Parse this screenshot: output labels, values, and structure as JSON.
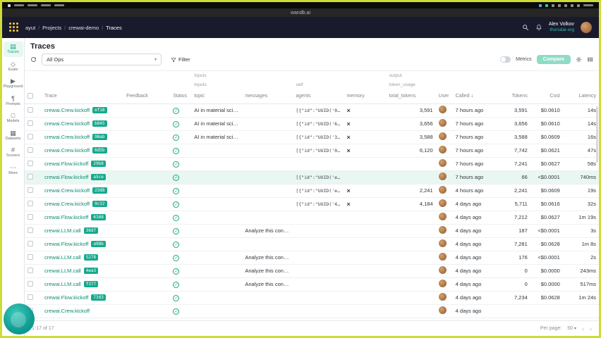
{
  "chrome": {
    "browser_title": "wandb.ai"
  },
  "header": {
    "breadcrumb": [
      "ayut",
      "Projects",
      "crewai-demo",
      "Traces"
    ],
    "user": {
      "name": "Alex Volkov",
      "org": "thursdai-org"
    }
  },
  "sidebar": {
    "items": [
      {
        "label": "Traces",
        "icon": "traces-icon",
        "active": true
      },
      {
        "label": "Evals",
        "icon": "evals-icon",
        "active": false
      },
      {
        "label": "Playground",
        "icon": "playground-icon",
        "active": false
      },
      {
        "label": "Prompts",
        "icon": "prompts-icon",
        "active": false
      },
      {
        "label": "Models",
        "icon": "models-icon",
        "active": false
      },
      {
        "label": "Datasets",
        "icon": "datasets-icon",
        "active": false
      },
      {
        "label": "Scorers",
        "icon": "scorers-icon",
        "active": false
      },
      {
        "label": "More",
        "icon": "more-icon",
        "active": false
      }
    ]
  },
  "page": {
    "title": "Traces"
  },
  "toolbar": {
    "all_ops": "All Ops",
    "filter": "Filter",
    "metrics": "Metrics",
    "compare": "Compare"
  },
  "table": {
    "group_row1": {
      "inputs": "inputs",
      "output": "output"
    },
    "group_row2": {
      "inputs": "inputs",
      "self": "self",
      "token_usage": "token_usage"
    },
    "columns": [
      "Trace",
      "Feedback",
      "Status",
      "topic",
      "messages",
      "agents",
      "memory",
      "total_tokens",
      "User",
      "Called",
      "Tokens",
      "Cost",
      "Latency"
    ],
    "rows": [
      {
        "name": "crewai.Crew.kickoff",
        "badge": "ef18",
        "topic": "AI in material science",
        "messages": "",
        "agents": "[{\"id\":\"UUID('02f7d...",
        "memory": true,
        "total_tokens": "3,591",
        "called": "7 hours ago",
        "tokens": "3,591",
        "cost": "$0.0610",
        "latency": "14s",
        "highlighted": false
      },
      {
        "name": "crewai.Crew.kickoff",
        "badge": "b845",
        "topic": "AI in material science",
        "messages": "",
        "agents": "[{\"id\":\"UUID('6229...",
        "memory": true,
        "total_tokens": "3,656",
        "called": "7 hours ago",
        "tokens": "3,656",
        "cost": "$0.0610",
        "latency": "14s",
        "highlighted": false
      },
      {
        "name": "crewai.Crew.kickoff",
        "badge": "98ab",
        "topic": "AI in material science",
        "messages": "",
        "agents": "[{\"id\":\"UUID('37bf6...",
        "memory": true,
        "total_tokens": "3,588",
        "called": "7 hours ago",
        "tokens": "3,588",
        "cost": "$0.0609",
        "latency": "16s",
        "highlighted": false
      },
      {
        "name": "crewai.Crew.kickoff",
        "badge": "6d5b",
        "topic": "",
        "messages": "",
        "agents": "[{\"id\":\"UUID('043b...",
        "memory": true,
        "total_tokens": "6,120",
        "called": "7 hours ago",
        "tokens": "7,742",
        "cost": "$0.0621",
        "latency": "47s",
        "highlighted": false
      },
      {
        "name": "crewai.Flow.kickoff",
        "badge": "29b8",
        "topic": "",
        "messages": "",
        "agents": "",
        "memory": false,
        "total_tokens": "",
        "called": "7 hours ago",
        "tokens": "7,241",
        "cost": "$0.0627",
        "latency": "58s",
        "highlighted": false
      },
      {
        "name": "crewai.Flow.kickoff",
        "badge": "a5ce",
        "topic": "",
        "messages": "",
        "agents": "[{\"id\":\"UUID('e8f56...",
        "memory": false,
        "total_tokens": "",
        "called": "7 hours ago",
        "tokens": "66",
        "cost": "<$0.0001",
        "latency": "740ms",
        "highlighted": true
      },
      {
        "name": "crewai.Crew.kickoff",
        "badge": "23d8",
        "topic": "",
        "messages": "",
        "agents": "[{\"id\":\"UUID('e8f56...",
        "memory": true,
        "total_tokens": "2,241",
        "called": "4 hours ago",
        "tokens": "2,241",
        "cost": "$0.0609",
        "latency": "19s",
        "highlighted": false
      },
      {
        "name": "crewai.Crew.kickoff",
        "badge": "9c32",
        "topic": "",
        "messages": "",
        "agents": "[{\"id\":\"UUID('4505...",
        "memory": true,
        "total_tokens": "4,184",
        "called": "4 days ago",
        "tokens": "5,711",
        "cost": "$0.0616",
        "latency": "32s",
        "highlighted": false
      },
      {
        "name": "crewai.Flow.kickoff",
        "badge": "6168",
        "topic": "",
        "messages": "",
        "agents": "",
        "memory": false,
        "total_tokens": "",
        "called": "4 days ago",
        "tokens": "7,212",
        "cost": "$0.0627",
        "latency": "1m 19s",
        "highlighted": false
      },
      {
        "name": "crewai.LLM.call",
        "badge": "36d7",
        "topic": "",
        "messages": "Analyze this conten...",
        "agents": "",
        "memory": false,
        "total_tokens": "",
        "called": "4 days ago",
        "tokens": "187",
        "cost": "<$0.0001",
        "latency": "3s",
        "highlighted": false
      },
      {
        "name": "crewai.Flow.kickoff",
        "badge": "a98b",
        "topic": "",
        "messages": "",
        "agents": "",
        "memory": false,
        "total_tokens": "",
        "called": "4 days ago",
        "tokens": "7,281",
        "cost": "$0.0628",
        "latency": "1m 8s",
        "highlighted": false
      },
      {
        "name": "crewai.LLM.call",
        "badge": "5278",
        "topic": "",
        "messages": "Analyze this conten...",
        "agents": "",
        "memory": false,
        "total_tokens": "",
        "called": "4 days ago",
        "tokens": "176",
        "cost": "<$0.0001",
        "latency": "2s",
        "highlighted": false
      },
      {
        "name": "crewai.LLM.call",
        "badge": "4ea3",
        "topic": "",
        "messages": "Analyze this conten...",
        "agents": "",
        "memory": false,
        "total_tokens": "",
        "called": "4 days ago",
        "tokens": "0",
        "cost": "$0.0000",
        "latency": "243ms",
        "highlighted": false
      },
      {
        "name": "crewai.LLM.call",
        "badge": "f377",
        "topic": "",
        "messages": "Analyze this conten...",
        "agents": "",
        "memory": false,
        "total_tokens": "",
        "called": "4 days ago",
        "tokens": "0",
        "cost": "$0.0000",
        "latency": "517ms",
        "highlighted": false
      },
      {
        "name": "crewai.Flow.kickoff",
        "badge": "73d3",
        "topic": "",
        "messages": "",
        "agents": "",
        "memory": false,
        "total_tokens": "",
        "called": "4 days ago",
        "tokens": "7,234",
        "cost": "$0.0628",
        "latency": "1m 24s",
        "highlighted": false
      },
      {
        "name": "crewai.Crew.kickoff",
        "badge": "",
        "topic": "",
        "messages": "",
        "agents": "",
        "memory": false,
        "total_tokens": "",
        "called": "4 days ago",
        "tokens": "",
        "cost": "",
        "latency": "",
        "highlighted": false
      }
    ]
  },
  "footer": {
    "range": "1-17 of 17",
    "per_page_label": "Per page:",
    "per_page": "50"
  }
}
